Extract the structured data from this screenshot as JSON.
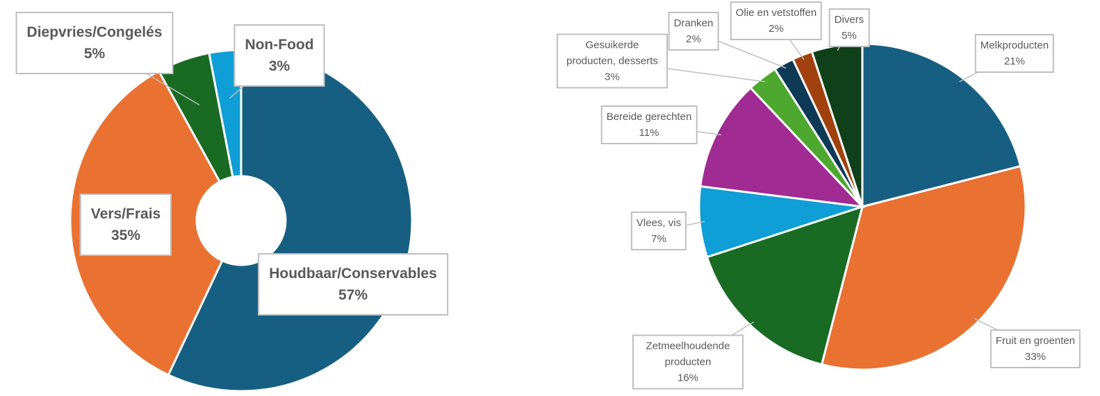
{
  "chart_data": [
    {
      "type": "donut",
      "categories": [
        "Houdbaar/Conservables",
        "Vers/Frais",
        "Diepvries/Congelés",
        "Non-Food"
      ],
      "values": [
        57,
        35,
        5,
        3
      ],
      "value_labels": [
        "57%",
        "35%",
        "5%",
        "3%"
      ],
      "colors": [
        "#175f82",
        "#e97132",
        "#196b24",
        "#0f9ed5"
      ]
    },
    {
      "type": "pie",
      "categories": [
        "Melkproducten",
        "Fruit en groenten",
        "Zetmeelhoudende producten",
        "Vlees, vis",
        "Bereide gerechten",
        "Gesuikerde producten, desserts",
        "Dranken",
        "Olie en vetstoffen",
        "Divers"
      ],
      "values": [
        21,
        33,
        16,
        7,
        11,
        3,
        2,
        2,
        5
      ],
      "value_labels": [
        "21%",
        "33%",
        "16%",
        "7%",
        "11%",
        "3%",
        "2%",
        "2%",
        "5%"
      ],
      "colors": [
        "#175f82",
        "#e97132",
        "#196b24",
        "#0f9ed5",
        "#a02b93",
        "#4ea72e",
        "#0e3a56",
        "#a0410e",
        "#10401a"
      ]
    }
  ]
}
